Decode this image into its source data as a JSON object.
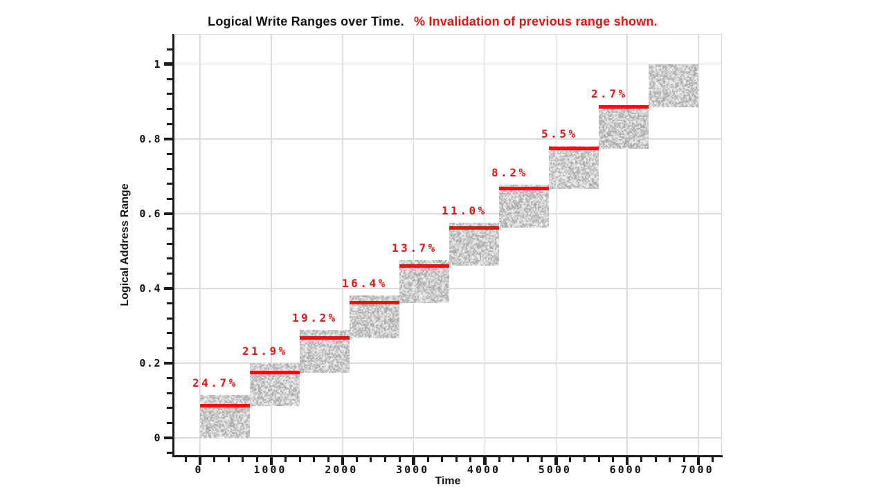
{
  "title": {
    "main": "Logical Write Ranges over Time.",
    "highlight": "% Invalidation of previous range shown."
  },
  "axes": {
    "x": {
      "label": "Time",
      "ticks": [
        0,
        1000,
        2000,
        3000,
        4000,
        5000,
        6000,
        7000
      ],
      "tick_labels": [
        "0",
        "1000",
        "2000",
        "3000",
        "4000",
        "5000",
        "6000",
        "7000"
      ],
      "major_step": 1000,
      "minor_step": 200
    },
    "y": {
      "label": "Logical Address Range",
      "ticks": [
        0,
        0.2,
        0.4,
        0.6,
        0.8,
        1
      ],
      "tick_labels": [
        "0",
        "0.2",
        "0.4",
        "0.6",
        "0.8",
        "1"
      ],
      "major_step": 0.2,
      "minor_step": 0.04
    }
  },
  "colors": {
    "red": "#ee1111",
    "grid": "#dcdcdc",
    "axis": "#1a1a1a",
    "box_gray_dark": "#a2a2a2",
    "box_gray_light": "#e4e4e4",
    "background": "#ffffff"
  },
  "chart_data": {
    "type": "bar",
    "variant": "staircase-logical-write-ranges",
    "title": "Logical Write Ranges over Time. % Invalidation of previous range shown.",
    "xlabel": "Time",
    "ylabel": "Logical Address Range",
    "xlim": [
      -370,
      7330
    ],
    "ylim": [
      -0.046,
      1.079
    ],
    "grid": true,
    "ranges": [
      {
        "t0": 0,
        "t1": 700,
        "y0": 0.0,
        "y1": 0.1141
      },
      {
        "t0": 700,
        "t1": 1400,
        "y0": 0.0859,
        "y1": 0.2
      },
      {
        "t0": 1400,
        "t1": 2100,
        "y0": 0.175,
        "y1": 0.2891
      },
      {
        "t0": 2100,
        "t1": 2800,
        "y0": 0.2672,
        "y1": 0.3813
      },
      {
        "t0": 2800,
        "t1": 3500,
        "y0": 0.3625,
        "y1": 0.4766
      },
      {
        "t0": 3500,
        "t1": 4200,
        "y0": 0.4609,
        "y1": 0.575
      },
      {
        "t0": 4200,
        "t1": 4900,
        "y0": 0.5625,
        "y1": 0.6766
      },
      {
        "t0": 4900,
        "t1": 5600,
        "y0": 0.6672,
        "y1": 0.7813
      },
      {
        "t0": 5600,
        "t1": 6300,
        "y0": 0.775,
        "y1": 0.8891
      },
      {
        "t0": 6300,
        "t1": 7000,
        "y0": 0.8859,
        "y1": 1.0
      }
    ],
    "invalidations": [
      {
        "label": "24.7%",
        "percent": 24.7,
        "line_y": 0.0859,
        "t0": 0,
        "t1": 700
      },
      {
        "label": "21.9%",
        "percent": 21.9,
        "line_y": 0.175,
        "t0": 700,
        "t1": 1400
      },
      {
        "label": "19.2%",
        "percent": 19.2,
        "line_y": 0.2672,
        "t0": 1400,
        "t1": 2100
      },
      {
        "label": "16.4%",
        "percent": 16.4,
        "line_y": 0.3625,
        "t0": 2100,
        "t1": 2800
      },
      {
        "label": "13.7%",
        "percent": 13.7,
        "line_y": 0.4609,
        "t0": 2800,
        "t1": 3500
      },
      {
        "label": "11.0%",
        "percent": 11.0,
        "line_y": 0.5625,
        "t0": 3500,
        "t1": 4200
      },
      {
        "label": "8.2%",
        "percent": 8.2,
        "line_y": 0.6672,
        "t0": 4200,
        "t1": 4900
      },
      {
        "label": "5.5%",
        "percent": 5.5,
        "line_y": 0.775,
        "t0": 4900,
        "t1": 5600
      },
      {
        "label": "2.7%",
        "percent": 2.7,
        "line_y": 0.8859,
        "t0": 5600,
        "t1": 6300
      }
    ]
  }
}
